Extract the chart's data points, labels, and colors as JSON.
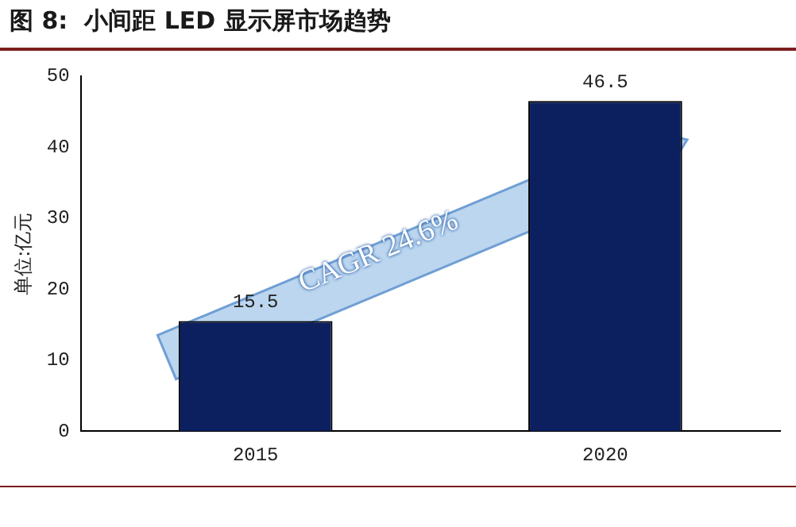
{
  "chart_data": {
    "type": "bar",
    "title": "图 8:  小间距 LED 显示屏市场趋势",
    "ylabel": "单位:亿元",
    "categories": [
      "2015",
      "2020"
    ],
    "values": [
      15.5,
      46.5
    ],
    "color": "#0c1f5e",
    "ylim": [
      0,
      50
    ],
    "yticks": [
      0,
      10,
      20,
      30,
      40,
      50
    ],
    "grid": false,
    "legend": false,
    "data_labels": true,
    "annotations": [
      "CAGR 24.6%"
    ]
  }
}
